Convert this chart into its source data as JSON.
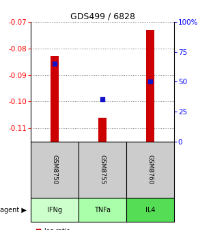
{
  "title": "GDS499 / 6828",
  "samples": [
    "GSM8750",
    "GSM8755",
    "GSM8760"
  ],
  "agents": [
    "IFNg",
    "TNFa",
    "IL4"
  ],
  "log_ratios": [
    -0.083,
    -0.106,
    -0.073
  ],
  "percentile_ranks": [
    65,
    35,
    50
  ],
  "ylim_left": [
    -0.115,
    -0.07
  ],
  "ylim_right": [
    0,
    100
  ],
  "y_ticks_left": [
    -0.11,
    -0.1,
    -0.09,
    -0.08,
    -0.07
  ],
  "y_ticks_right": [
    0,
    25,
    50,
    75,
    100
  ],
  "bar_color": "#cc0000",
  "percentile_color": "#1111cc",
  "sample_bg": "#cccccc",
  "agent_colors": {
    "IFNg": "#ccffcc",
    "TNFa": "#aaffaa",
    "IL4": "#55dd55"
  },
  "legend_log_color": "#cc0000",
  "legend_pct_color": "#1111cc",
  "title_fontsize": 9,
  "tick_fontsize": 7.5,
  "label_fontsize": 7.5
}
